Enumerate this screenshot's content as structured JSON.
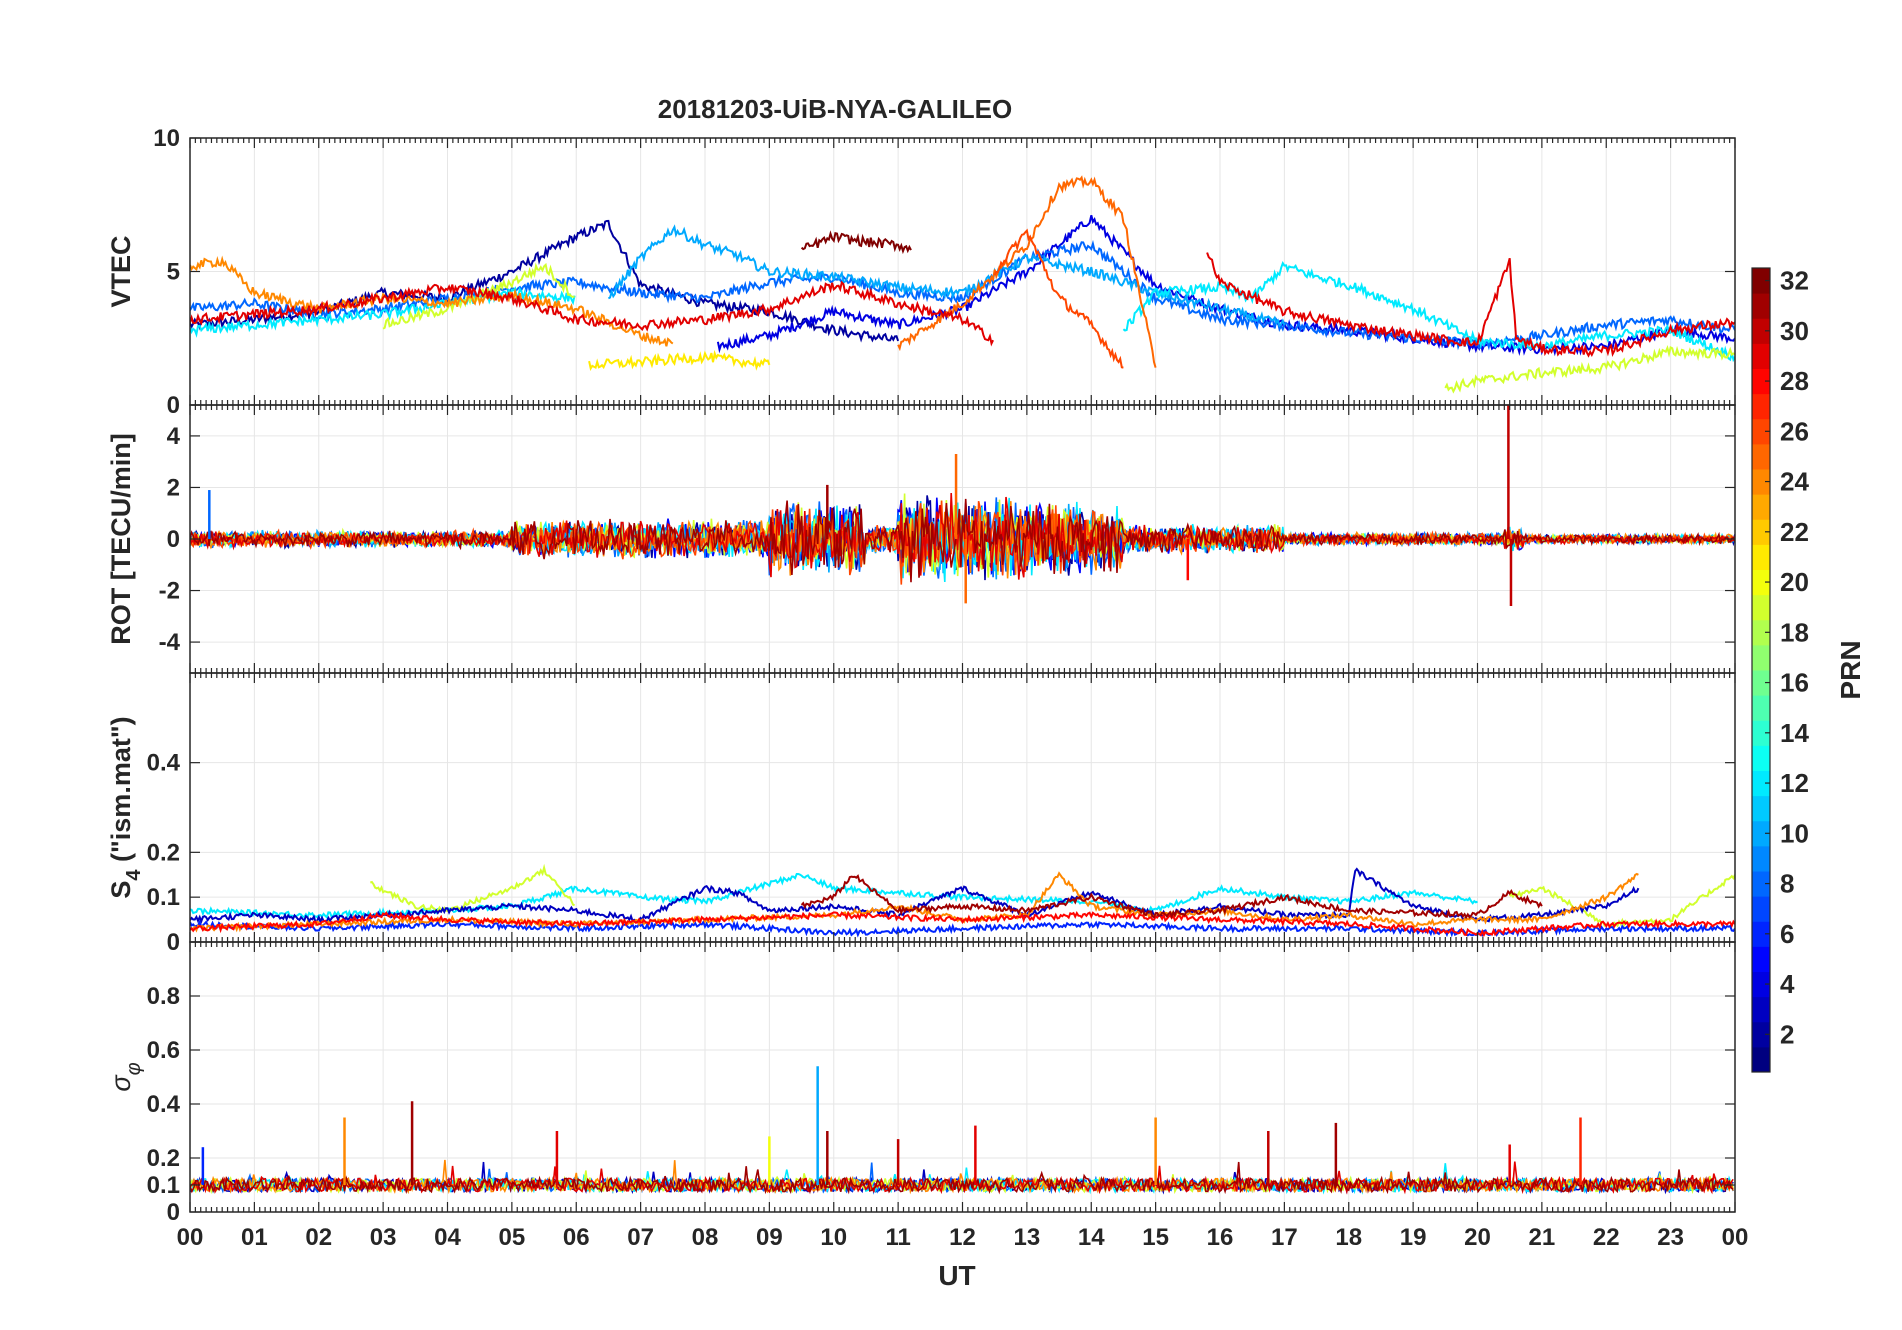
{
  "chart_data": {
    "type": "line",
    "title": "20181203-UiB-NYA-GALILEO",
    "xlabel": "UT",
    "x_ticks": [
      "00",
      "01",
      "02",
      "03",
      "04",
      "05",
      "06",
      "07",
      "08",
      "09",
      "10",
      "11",
      "12",
      "13",
      "14",
      "15",
      "16",
      "17",
      "18",
      "19",
      "20",
      "21",
      "22",
      "23",
      "00"
    ],
    "xlim": [
      0,
      24
    ],
    "panels": [
      {
        "id": "vtec",
        "ylabel": "VTEC",
        "ylim": [
          0,
          10
        ],
        "y_ticks": [
          0,
          5,
          10
        ],
        "tick_labels": [
          "0",
          "5",
          "10"
        ],
        "series": [
          {
            "prn": 2,
            "t": [
              0,
              1,
              2,
              3,
              4,
              5,
              6,
              6.5,
              7,
              8,
              9,
              10,
              11
            ],
            "v": [
              3.0,
              3.2,
              3.5,
              4.2,
              4.0,
              5.0,
              6.3,
              6.8,
              4.5,
              3.8,
              3.5,
              2.8,
              2.4
            ]
          },
          {
            "prn": 4,
            "t": [
              8.2,
              9,
              10,
              11,
              12,
              13,
              14,
              15,
              16,
              17,
              18,
              19,
              20,
              21,
              22,
              23,
              24
            ],
            "v": [
              2.2,
              2.6,
              3.5,
              3.0,
              3.6,
              5.0,
              7.0,
              4.5,
              3.6,
              3.0,
              2.8,
              2.5,
              2.2,
              2.1,
              2.2,
              2.8,
              2.5
            ]
          },
          {
            "prn": 8,
            "t": [
              0,
              1,
              2,
              3,
              4,
              5,
              6,
              7,
              8,
              9,
              10,
              11,
              12,
              13,
              14,
              15,
              16,
              17,
              18,
              19,
              20,
              21,
              22,
              23,
              24
            ],
            "v": [
              3.6,
              3.8,
              3.4,
              3.6,
              4.0,
              4.4,
              4.6,
              4.2,
              4.0,
              4.6,
              4.8,
              4.2,
              4.0,
              5.5,
              6.0,
              4.0,
              3.2,
              3.0,
              2.7,
              2.5,
              2.3,
              2.6,
              3.0,
              3.2,
              2.8
            ]
          },
          {
            "prn": 10,
            "t": [
              6.5,
              7,
              7.5,
              8,
              8.5,
              9,
              10,
              11,
              12,
              13,
              14,
              15,
              16,
              17
            ],
            "v": [
              4.0,
              5.5,
              6.6,
              6.0,
              5.6,
              5.0,
              4.8,
              4.4,
              4.2,
              5.5,
              5.0,
              4.2,
              3.6,
              3.0
            ]
          },
          {
            "prn": 12,
            "t": [
              0,
              1,
              2,
              3,
              4,
              5,
              6,
              14.5,
              15,
              16,
              16.5,
              17,
              17.5,
              18,
              19,
              20,
              21,
              22,
              23,
              24
            ],
            "v": [
              2.8,
              3.0,
              3.2,
              3.4,
              3.8,
              4.2,
              4.0,
              2.8,
              4.2,
              4.4,
              4.0,
              5.2,
              4.8,
              4.5,
              3.6,
              2.4,
              2.2,
              2.6,
              2.8,
              1.8
            ]
          },
          {
            "prn": 19,
            "t": [
              3,
              4,
              5,
              5.5,
              6,
              19.5,
              20,
              21,
              22,
              23,
              24
            ],
            "v": [
              3.0,
              3.6,
              4.6,
              5.2,
              4.0,
              0.6,
              0.9,
              1.2,
              1.4,
              2.0,
              1.9
            ]
          },
          {
            "prn": 21,
            "t": [
              6.2,
              7,
              8,
              9
            ],
            "v": [
              1.5,
              1.6,
              1.8,
              1.5
            ]
          },
          {
            "prn": 24,
            "t": [
              0,
              0.5,
              1,
              2,
              3,
              4,
              5,
              6,
              7,
              7.5
            ],
            "v": [
              5.2,
              5.4,
              4.2,
              3.6,
              4.0,
              3.8,
              4.1,
              3.6,
              2.6,
              2.3
            ]
          },
          {
            "prn": 25,
            "t": [
              11,
              12,
              13,
              13.5,
              14,
              14.5,
              15
            ],
            "v": [
              2.2,
              3.8,
              6.0,
              8.2,
              8.4,
              7.0,
              1.4
            ]
          },
          {
            "prn": 26,
            "t": [
              12.5,
              13,
              13.5,
              14,
              14.5
            ],
            "v": [
              5.0,
              6.5,
              4.0,
              3.0,
              1.4
            ]
          },
          {
            "prn": 29,
            "t": [
              0,
              1,
              2,
              3,
              4,
              5,
              6,
              7,
              8,
              9,
              10,
              11,
              12,
              12.5,
              15.8,
              16,
              17,
              18,
              19,
              20,
              20.5,
              20.6,
              21,
              22,
              23,
              24
            ],
            "v": [
              3.2,
              3.4,
              3.6,
              4.0,
              4.4,
              4.0,
              3.2,
              3.0,
              3.2,
              3.6,
              4.5,
              3.8,
              3.2,
              2.4,
              5.7,
              4.6,
              3.5,
              3.0,
              2.6,
              2.3,
              5.4,
              2.5,
              2.1,
              2.0,
              2.8,
              3.1
            ]
          },
          {
            "prn": 32,
            "t": [
              9.5,
              10,
              10.5,
              11,
              11.2
            ],
            "v": [
              5.8,
              6.3,
              6.1,
              6.0,
              5.8
            ]
          }
        ]
      },
      {
        "id": "rot",
        "ylabel": "ROT [TECU/min]",
        "ylim": [
          -5.2,
          5.2
        ],
        "y_ticks": [
          -4,
          -2,
          0,
          2,
          4
        ],
        "tick_labels": [
          "-4",
          "-2",
          "0",
          "2",
          "4"
        ],
        "activity": [
          {
            "start": 0,
            "end": 5,
            "amp": 0.35
          },
          {
            "start": 5,
            "end": 9,
            "amp": 0.8
          },
          {
            "start": 9,
            "end": 10.5,
            "amp": 1.6
          },
          {
            "start": 10.5,
            "end": 11,
            "amp": 0.6
          },
          {
            "start": 11,
            "end": 13,
            "amp": 1.8
          },
          {
            "start": 13,
            "end": 14.5,
            "amp": 1.5
          },
          {
            "start": 14.5,
            "end": 17,
            "amp": 0.6
          },
          {
            "start": 17,
            "end": 20.4,
            "amp": 0.25
          },
          {
            "start": 20.4,
            "end": 20.7,
            "amp": 0.5
          },
          {
            "start": 20.7,
            "end": 24,
            "amp": 0.2
          }
        ],
        "spikes": [
          {
            "t": 20.48,
            "v": 5.3,
            "prn": 30
          },
          {
            "t": 20.52,
            "v": -2.6,
            "prn": 30
          },
          {
            "t": 11.9,
            "v": 3.3,
            "prn": 25
          },
          {
            "t": 12.05,
            "v": -2.5,
            "prn": 25
          },
          {
            "t": 9.9,
            "v": 2.1,
            "prn": 31
          },
          {
            "t": 0.3,
            "v": 1.9,
            "prn": 8
          },
          {
            "t": 15.5,
            "v": -1.6,
            "prn": 28
          }
        ]
      },
      {
        "id": "s4",
        "ylabel": "S4 (\"ism.mat\")",
        "ylabel_main": "S",
        "ylabel_sub": "4",
        "ylabel_rest": " (\"ism.mat\")",
        "ylim": [
          0,
          0.6
        ],
        "y_ticks": [
          0,
          0.1,
          0.2,
          0.4
        ],
        "tick_labels": [
          "0",
          "0.1",
          "0.2",
          "0.4"
        ],
        "series": [
          {
            "prn": 12,
            "t": [
              0,
              2,
              4,
              5,
              6,
              7,
              8,
              9.5,
              10,
              12,
              14,
              15,
              16,
              17,
              18,
              19,
              20
            ],
            "v": [
              0.07,
              0.06,
              0.07,
              0.08,
              0.12,
              0.1,
              0.09,
              0.15,
              0.12,
              0.1,
              0.09,
              0.07,
              0.12,
              0.1,
              0.09,
              0.11,
              0.09
            ]
          },
          {
            "prn": 19,
            "t": [
              2.8,
              3.5,
              4,
              5,
              5.5,
              6,
              20.5,
              21,
              22,
              23,
              24
            ],
            "v": [
              0.13,
              0.08,
              0.07,
              0.12,
              0.16,
              0.08,
              0.1,
              0.12,
              0.04,
              0.05,
              0.15
            ]
          },
          {
            "prn": 3,
            "t": [
              0,
              1,
              2,
              3,
              4,
              5,
              6,
              7,
              8,
              8.5,
              9,
              10,
              11,
              12,
              13,
              14,
              15,
              16,
              17,
              18,
              18.1,
              19,
              20,
              21,
              22,
              22.5
            ],
            "v": [
              0.05,
              0.06,
              0.05,
              0.06,
              0.07,
              0.08,
              0.07,
              0.05,
              0.12,
              0.11,
              0.07,
              0.08,
              0.06,
              0.12,
              0.06,
              0.11,
              0.06,
              0.08,
              0.06,
              0.06,
              0.16,
              0.08,
              0.05,
              0.06,
              0.08,
              0.12
            ]
          },
          {
            "prn": 6,
            "t": [
              0,
              2,
              4,
              6,
              8,
              10,
              12,
              14,
              16,
              18,
              20,
              22,
              24
            ],
            "v": [
              0.04,
              0.03,
              0.04,
              0.03,
              0.04,
              0.02,
              0.03,
              0.04,
              0.03,
              0.03,
              0.02,
              0.03,
              0.03
            ]
          },
          {
            "prn": 24,
            "t": [
              0,
              2,
              4,
              6,
              8,
              10,
              11,
              12,
              13,
              13.5,
              14,
              15,
              16,
              17,
              18,
              19,
              20,
              21,
              22,
              22.5
            ],
            "v": [
              0.03,
              0.04,
              0.05,
              0.04,
              0.05,
              0.06,
              0.08,
              0.05,
              0.06,
              0.15,
              0.08,
              0.06,
              0.07,
              0.05,
              0.06,
              0.04,
              0.05,
              0.05,
              0.1,
              0.15
            ]
          },
          {
            "prn": 28,
            "t": [
              0,
              2,
              3,
              4,
              6,
              8,
              10,
              12,
              14,
              16,
              18,
              19,
              20,
              21,
              22,
              24
            ],
            "v": [
              0.03,
              0.04,
              0.06,
              0.05,
              0.04,
              0.05,
              0.06,
              0.05,
              0.06,
              0.05,
              0.04,
              0.03,
              0.02,
              0.03,
              0.04,
              0.04
            ]
          },
          {
            "prn": 31,
            "t": [
              9.5,
              10,
              10.3,
              11,
              12,
              13,
              14,
              15,
              16,
              17,
              18,
              20,
              20.5,
              21
            ],
            "v": [
              0.08,
              0.1,
              0.15,
              0.07,
              0.08,
              0.07,
              0.1,
              0.06,
              0.07,
              0.1,
              0.07,
              0.06,
              0.11,
              0.08
            ]
          }
        ]
      },
      {
        "id": "sigma",
        "ylabel": "σφ",
        "ylabel_main": "σ",
        "ylabel_sub": "φ",
        "ylim": [
          0,
          1
        ],
        "y_ticks": [
          0,
          0.1,
          0.2,
          0.4,
          0.6,
          0.8
        ],
        "tick_labels": [
          "0",
          "0.1",
          "0.2",
          "0.4",
          "0.6",
          "0.8"
        ],
        "baseline": 0.1,
        "spikes": [
          {
            "t": 2.4,
            "v": 0.35,
            "prn": 24
          },
          {
            "t": 3.45,
            "v": 0.41,
            "prn": 31
          },
          {
            "t": 5.7,
            "v": 0.3,
            "prn": 29
          },
          {
            "t": 9.0,
            "v": 0.28,
            "prn": 20
          },
          {
            "t": 9.75,
            "v": 0.54,
            "prn": 10
          },
          {
            "t": 9.9,
            "v": 0.3,
            "prn": 31
          },
          {
            "t": 11.0,
            "v": 0.27,
            "prn": 30
          },
          {
            "t": 12.2,
            "v": 0.32,
            "prn": 29
          },
          {
            "t": 15.0,
            "v": 0.35,
            "prn": 24
          },
          {
            "t": 16.75,
            "v": 0.3,
            "prn": 30
          },
          {
            "t": 17.8,
            "v": 0.33,
            "prn": 31
          },
          {
            "t": 20.5,
            "v": 0.25,
            "prn": 29
          },
          {
            "t": 21.6,
            "v": 0.35,
            "prn": 27
          },
          {
            "t": 0.2,
            "v": 0.24,
            "prn": 6
          }
        ]
      }
    ],
    "colorbar": {
      "label": "PRN",
      "range": [
        1,
        32
      ],
      "tick_labels": [
        "2",
        "4",
        "6",
        "8",
        "10",
        "12",
        "14",
        "16",
        "18",
        "20",
        "22",
        "24",
        "26",
        "28",
        "30",
        "32"
      ],
      "colormap": "jet"
    }
  }
}
